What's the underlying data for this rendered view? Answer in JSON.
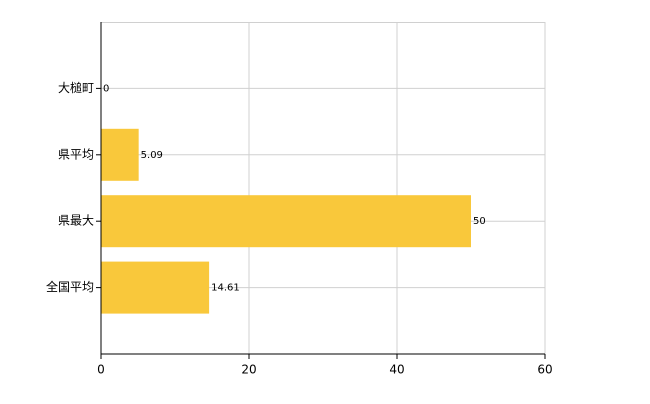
{
  "chart_data": {
    "type": "hbar",
    "categories": [
      "大槌町",
      "県平均",
      "県最大",
      "全国平均"
    ],
    "values": [
      0,
      5.09,
      50,
      14.61
    ],
    "color": "#f9c83b",
    "xlim": [
      0,
      60
    ],
    "xticks": [
      0,
      20,
      40,
      60
    ],
    "grid": true
  }
}
